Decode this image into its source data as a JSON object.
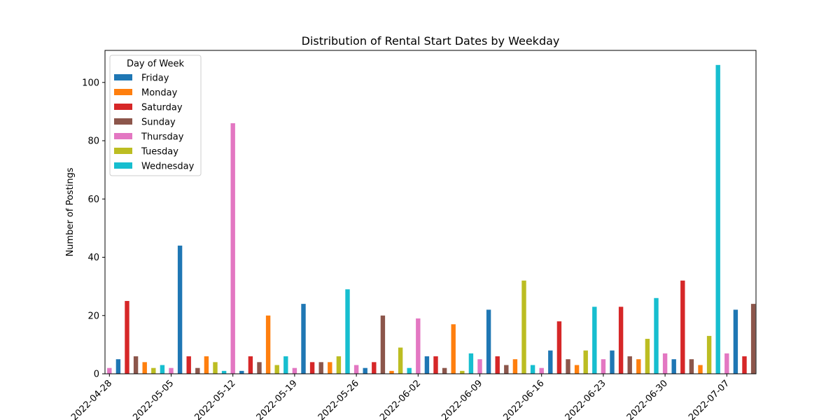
{
  "chart_data": {
    "type": "bar",
    "title": "Distribution of Rental Start Dates by Weekday",
    "xlabel": "",
    "ylabel": "Number of Postings",
    "ylim": [
      0,
      111
    ],
    "yticks": [
      0,
      20,
      40,
      60,
      80,
      100
    ],
    "x_tick_labels": [
      "2022-04-28",
      "2022-05-05",
      "2022-05-12",
      "2022-05-19",
      "2022-05-26",
      "2022-06-02",
      "2022-06-09",
      "2022-06-16",
      "2022-06-23",
      "2022-06-30",
      "2022-07-07"
    ],
    "legend": {
      "title": "Day of Week",
      "placement": "top-left",
      "entries": [
        "Friday",
        "Monday",
        "Saturday",
        "Sunday",
        "Thursday",
        "Tuesday",
        "Wednesday"
      ]
    },
    "colors": {
      "Friday": "#1f77b4",
      "Monday": "#ff7f0e",
      "Saturday": "#d62728",
      "Sunday": "#8c564b",
      "Thursday": "#e377c2",
      "Tuesday": "#bcbd22",
      "Wednesday": "#17becf"
    },
    "grid": false,
    "points": [
      {
        "date": "2022-04-28",
        "day": "Thursday",
        "value": 2
      },
      {
        "date": "2022-04-29",
        "day": "Friday",
        "value": 5
      },
      {
        "date": "2022-04-30",
        "day": "Saturday",
        "value": 25
      },
      {
        "date": "2022-05-01",
        "day": "Sunday",
        "value": 6
      },
      {
        "date": "2022-05-02",
        "day": "Monday",
        "value": 4
      },
      {
        "date": "2022-05-03",
        "day": "Tuesday",
        "value": 2
      },
      {
        "date": "2022-05-04",
        "day": "Wednesday",
        "value": 3
      },
      {
        "date": "2022-05-05",
        "day": "Thursday",
        "value": 2
      },
      {
        "date": "2022-05-06",
        "day": "Friday",
        "value": 44
      },
      {
        "date": "2022-05-07",
        "day": "Saturday",
        "value": 6
      },
      {
        "date": "2022-05-08",
        "day": "Sunday",
        "value": 2
      },
      {
        "date": "2022-05-09",
        "day": "Monday",
        "value": 6
      },
      {
        "date": "2022-05-10",
        "day": "Tuesday",
        "value": 4
      },
      {
        "date": "2022-05-11",
        "day": "Wednesday",
        "value": 1
      },
      {
        "date": "2022-05-12",
        "day": "Thursday",
        "value": 86
      },
      {
        "date": "2022-05-13",
        "day": "Friday",
        "value": 1
      },
      {
        "date": "2022-05-14",
        "day": "Saturday",
        "value": 6
      },
      {
        "date": "2022-05-15",
        "day": "Sunday",
        "value": 4
      },
      {
        "date": "2022-05-16",
        "day": "Monday",
        "value": 20
      },
      {
        "date": "2022-05-17",
        "day": "Tuesday",
        "value": 3
      },
      {
        "date": "2022-05-18",
        "day": "Wednesday",
        "value": 6
      },
      {
        "date": "2022-05-19",
        "day": "Thursday",
        "value": 2
      },
      {
        "date": "2022-05-20",
        "day": "Friday",
        "value": 24
      },
      {
        "date": "2022-05-21",
        "day": "Saturday",
        "value": 4
      },
      {
        "date": "2022-05-22",
        "day": "Sunday",
        "value": 4
      },
      {
        "date": "2022-05-23",
        "day": "Monday",
        "value": 4
      },
      {
        "date": "2022-05-24",
        "day": "Tuesday",
        "value": 6
      },
      {
        "date": "2022-05-25",
        "day": "Wednesday",
        "value": 29
      },
      {
        "date": "2022-05-26",
        "day": "Thursday",
        "value": 3
      },
      {
        "date": "2022-05-27",
        "day": "Friday",
        "value": 2
      },
      {
        "date": "2022-05-28",
        "day": "Saturday",
        "value": 4
      },
      {
        "date": "2022-05-29",
        "day": "Sunday",
        "value": 20
      },
      {
        "date": "2022-05-30",
        "day": "Monday",
        "value": 1
      },
      {
        "date": "2022-05-31",
        "day": "Tuesday",
        "value": 9
      },
      {
        "date": "2022-06-01",
        "day": "Wednesday",
        "value": 2
      },
      {
        "date": "2022-06-02",
        "day": "Thursday",
        "value": 19
      },
      {
        "date": "2022-06-03",
        "day": "Friday",
        "value": 6
      },
      {
        "date": "2022-06-04",
        "day": "Saturday",
        "value": 6
      },
      {
        "date": "2022-06-05",
        "day": "Sunday",
        "value": 2
      },
      {
        "date": "2022-06-06",
        "day": "Monday",
        "value": 17
      },
      {
        "date": "2022-06-07",
        "day": "Tuesday",
        "value": 1
      },
      {
        "date": "2022-06-08",
        "day": "Wednesday",
        "value": 7
      },
      {
        "date": "2022-06-09",
        "day": "Thursday",
        "value": 5
      },
      {
        "date": "2022-06-10",
        "day": "Friday",
        "value": 22
      },
      {
        "date": "2022-06-11",
        "day": "Saturday",
        "value": 6
      },
      {
        "date": "2022-06-12",
        "day": "Sunday",
        "value": 3
      },
      {
        "date": "2022-06-13",
        "day": "Monday",
        "value": 5
      },
      {
        "date": "2022-06-14",
        "day": "Tuesday",
        "value": 32
      },
      {
        "date": "2022-06-15",
        "day": "Wednesday",
        "value": 3
      },
      {
        "date": "2022-06-16",
        "day": "Thursday",
        "value": 2
      },
      {
        "date": "2022-06-17",
        "day": "Friday",
        "value": 8
      },
      {
        "date": "2022-06-18",
        "day": "Saturday",
        "value": 18
      },
      {
        "date": "2022-06-19",
        "day": "Sunday",
        "value": 5
      },
      {
        "date": "2022-06-20",
        "day": "Monday",
        "value": 3
      },
      {
        "date": "2022-06-21",
        "day": "Tuesday",
        "value": 8
      },
      {
        "date": "2022-06-22",
        "day": "Wednesday",
        "value": 23
      },
      {
        "date": "2022-06-23",
        "day": "Thursday",
        "value": 5
      },
      {
        "date": "2022-06-24",
        "day": "Friday",
        "value": 8
      },
      {
        "date": "2022-06-25",
        "day": "Saturday",
        "value": 23
      },
      {
        "date": "2022-06-26",
        "day": "Sunday",
        "value": 6
      },
      {
        "date": "2022-06-27",
        "day": "Monday",
        "value": 5
      },
      {
        "date": "2022-06-28",
        "day": "Tuesday",
        "value": 12
      },
      {
        "date": "2022-06-29",
        "day": "Wednesday",
        "value": 26
      },
      {
        "date": "2022-06-30",
        "day": "Thursday",
        "value": 7
      },
      {
        "date": "2022-07-01",
        "day": "Friday",
        "value": 5
      },
      {
        "date": "2022-07-02",
        "day": "Saturday",
        "value": 32
      },
      {
        "date": "2022-07-03",
        "day": "Sunday",
        "value": 5
      },
      {
        "date": "2022-07-04",
        "day": "Monday",
        "value": 3
      },
      {
        "date": "2022-07-05",
        "day": "Tuesday",
        "value": 13
      },
      {
        "date": "2022-07-06",
        "day": "Wednesday",
        "value": 106
      },
      {
        "date": "2022-07-07",
        "day": "Thursday",
        "value": 7
      },
      {
        "date": "2022-07-08",
        "day": "Friday",
        "value": 22
      },
      {
        "date": "2022-07-09",
        "day": "Saturday",
        "value": 6
      },
      {
        "date": "2022-07-10",
        "day": "Sunday",
        "value": 24
      }
    ]
  }
}
